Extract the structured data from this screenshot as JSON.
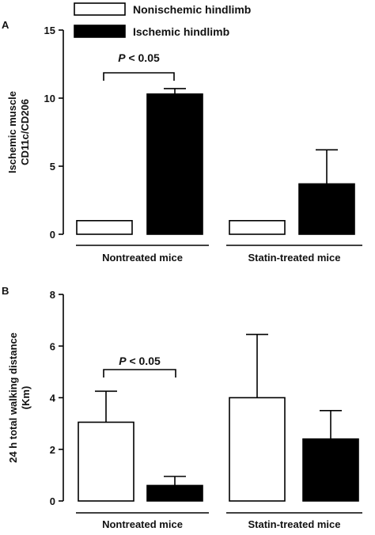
{
  "legend": [
    {
      "label": "Nonischemic hindlimb",
      "color": "#ffffff"
    },
    {
      "label": "Ischemic hindlimb",
      "color": "#000000"
    }
  ],
  "chart_data": [
    {
      "type": "bar",
      "panel": "A",
      "ylabel": [
        "Ischemic muscle",
        "CD11c/CD206"
      ],
      "ylim": [
        0,
        15
      ],
      "yticks": [
        0,
        5,
        10,
        15
      ],
      "categories": [
        "Nontreated mice",
        "Statin-treated mice"
      ],
      "series": [
        {
          "name": "Nonischemic hindlimb",
          "color": "#ffffff",
          "values": [
            1.0,
            1.0
          ],
          "errors": [
            0,
            0
          ]
        },
        {
          "name": "Ischemic hindlimb",
          "color": "#000000",
          "values": [
            10.3,
            3.7
          ],
          "errors": [
            0.4,
            2.5
          ]
        }
      ],
      "annotation": {
        "text": "P < 0.05",
        "group": 0
      }
    },
    {
      "type": "bar",
      "panel": "B",
      "ylabel": [
        "24 h total walking distance",
        "(Km)"
      ],
      "ylim": [
        0,
        8
      ],
      "yticks": [
        0,
        2,
        4,
        6,
        8
      ],
      "categories": [
        "Nontreated mice",
        "Statin-treated mice"
      ],
      "series": [
        {
          "name": "Nonischemic hindlimb",
          "color": "#ffffff",
          "values": [
            3.05,
            4.0
          ],
          "errors": [
            1.2,
            2.45
          ]
        },
        {
          "name": "Ischemic hindlimb",
          "color": "#000000",
          "values": [
            0.6,
            2.4
          ],
          "errors": [
            0.35,
            1.1
          ]
        }
      ],
      "annotation": {
        "text": "P < 0.05",
        "group": 0
      }
    }
  ]
}
